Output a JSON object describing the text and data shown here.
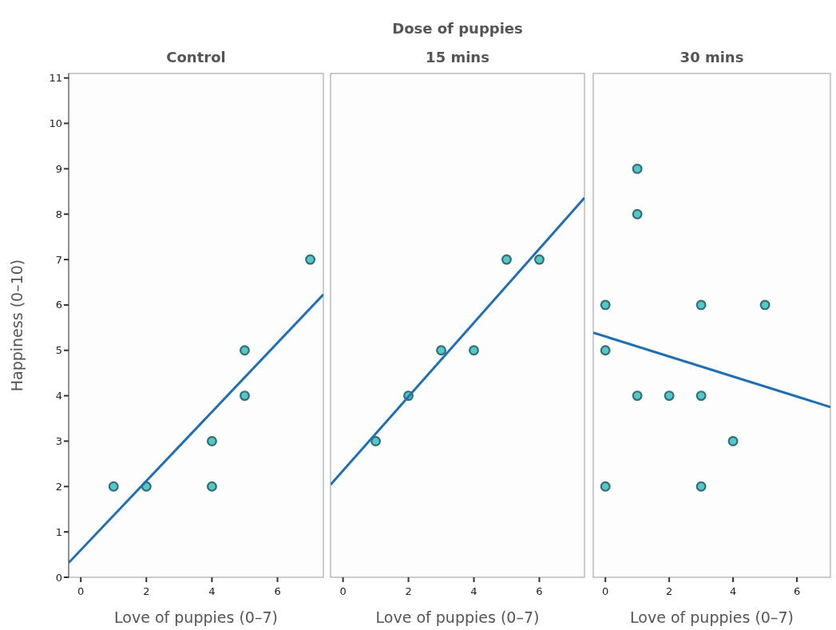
{
  "chart_data": [
    {
      "type": "scatter",
      "title": "Control",
      "xlabel": "Love of puppies (0–7)",
      "ylabel": "Happiness (0–10)",
      "xlim": [
        -0.37,
        7.4
      ],
      "ylim": [
        0,
        11.1
      ],
      "xticks": [
        0,
        2,
        4,
        6
      ],
      "yticks": [
        0,
        1,
        2,
        3,
        4,
        5,
        6,
        7,
        8,
        9,
        10,
        11
      ],
      "marker": "circle",
      "series": [
        {
          "color": "#55c6c9",
          "x": [
            1,
            2,
            4,
            4,
            5,
            5,
            7
          ],
          "values": [
            2,
            2,
            2,
            3,
            4,
            5,
            7
          ]
        },
        {
          "type": "line",
          "marker": "none",
          "color": "#1f6fb2",
          "x": [
            -0.37,
            7.4
          ],
          "values": [
            0.32,
            6.23
          ]
        }
      ]
    },
    {
      "type": "scatter",
      "title": "15 mins",
      "xlabel": "Love of puppies (0–7)",
      "annotations": [
        "Dose of puppies"
      ],
      "xlim": [
        -0.38,
        7.38
      ],
      "ylim": [
        0,
        11.1
      ],
      "xticks": [
        0,
        2,
        4,
        6
      ],
      "tick_labels": "x",
      "marker": "circle",
      "series": [
        {
          "color": "#55c6c9",
          "x": [
            1,
            2,
            3,
            4,
            5,
            6
          ],
          "values": [
            3,
            4,
            5,
            5,
            7,
            7
          ]
        },
        {
          "type": "line",
          "marker": "none",
          "color": "#1f6fb2",
          "x": [
            -0.38,
            7.38
          ],
          "values": [
            2.04,
            8.36
          ]
        }
      ]
    },
    {
      "type": "scatter",
      "title": "30 mins",
      "xlabel": "Love of puppies (0–7)",
      "xlim": [
        -0.38,
        7.05
      ],
      "ylim": [
        0,
        11.1
      ],
      "xticks": [
        0,
        2,
        4,
        6
      ],
      "tick_labels": "x",
      "marker": "circle",
      "series": [
        {
          "color": "#55c6c9",
          "x": [
            1,
            1,
            0,
            3,
            5,
            0,
            1,
            2,
            3,
            4,
            0,
            3
          ],
          "values": [
            9,
            8,
            6,
            6,
            6,
            5,
            4,
            4,
            4,
            3,
            2,
            2
          ]
        },
        {
          "type": "line",
          "marker": "none",
          "color": "#1f6fb2",
          "x": [
            -0.38,
            7.05
          ],
          "values": [
            5.39,
            3.75
          ]
        }
      ]
    }
  ]
}
